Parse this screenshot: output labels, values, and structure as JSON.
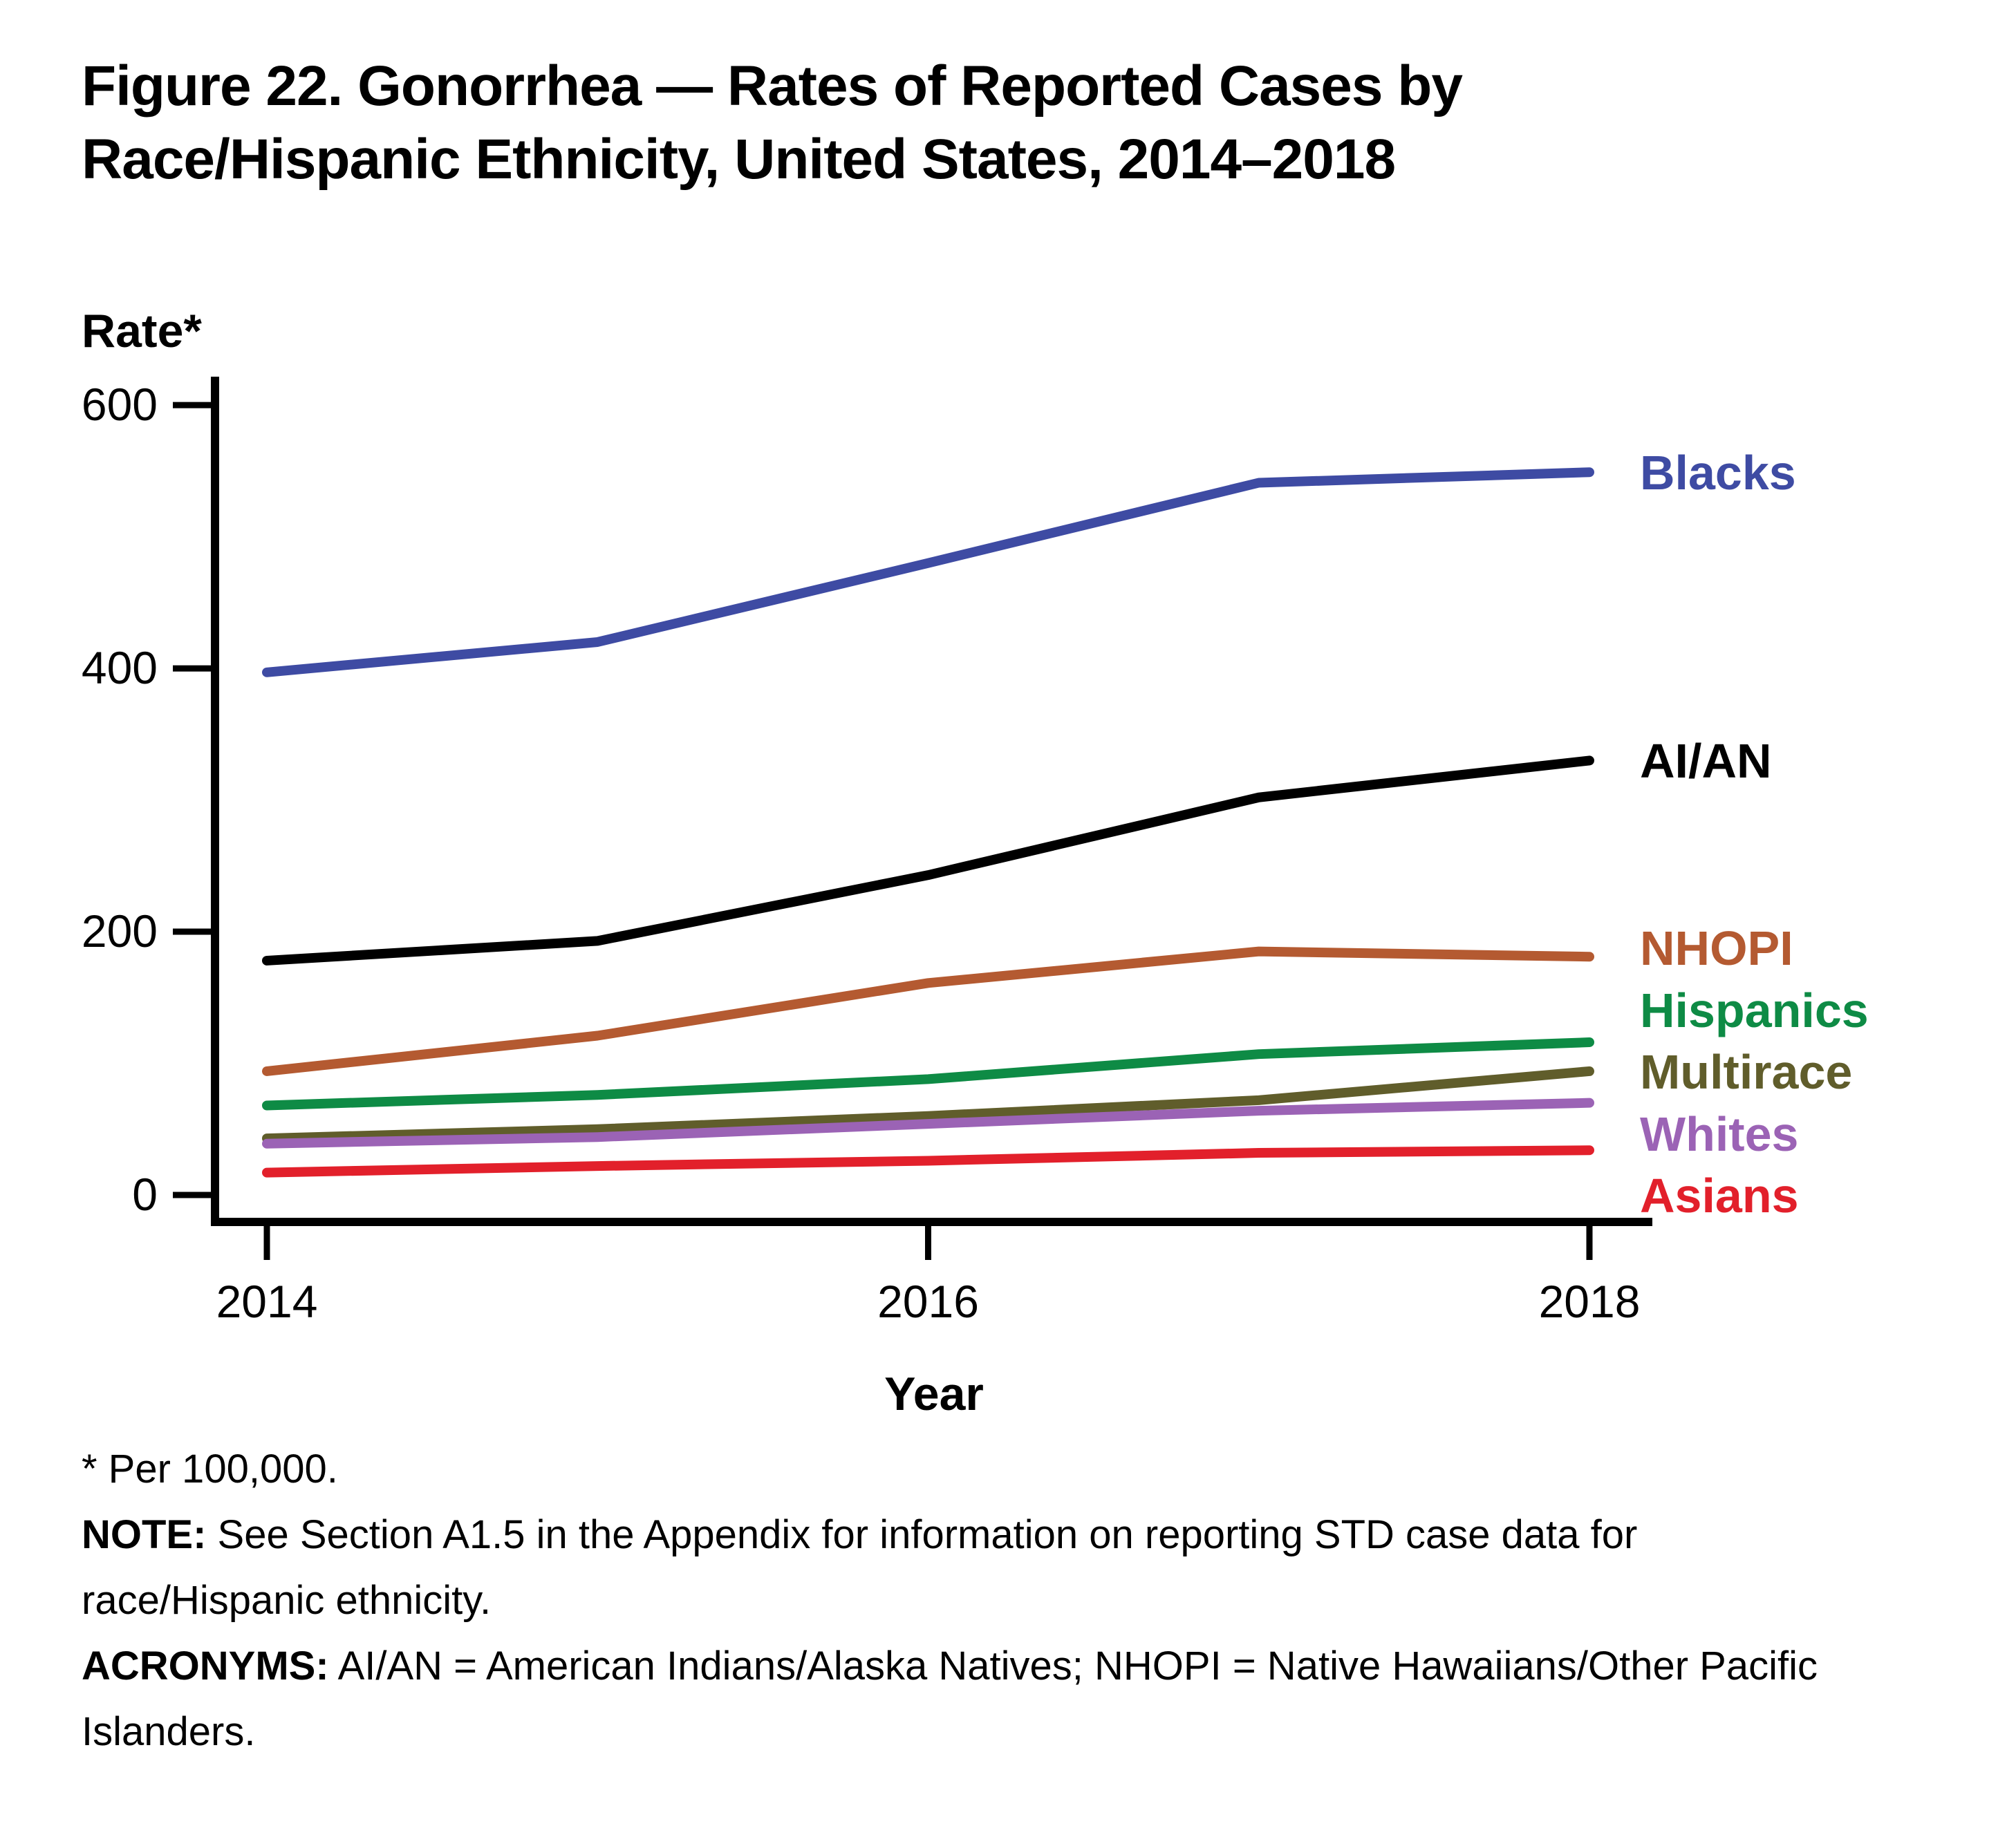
{
  "figure": {
    "title_line1": "Figure 22. Gonorrhea — Rates of Reported Cases by",
    "title_line2": "Race/Hispanic Ethnicity, United States, 2014–2018"
  },
  "chart_data": {
    "type": "line",
    "title": "Figure 22. Gonorrhea — Rates of Reported Cases by Race/Hispanic Ethnicity, United States, 2014–2018",
    "xlabel": "Year",
    "ylabel": "Rate*",
    "x": [
      2014,
      2015,
      2016,
      2017,
      2018
    ],
    "xticks": [
      2014,
      2016,
      2018
    ],
    "yticks": [
      0,
      200,
      400,
      600
    ],
    "ylim": [
      0,
      600
    ],
    "grid": false,
    "legend_position": "right of line ends, colored text labels",
    "axis_color": "#000000",
    "series": [
      {
        "name": "Blacks",
        "color": "#3E4BA3",
        "values": [
          397,
          420,
          480,
          541,
          549
        ]
      },
      {
        "name": "AI/AN",
        "color": "#000000",
        "values": [
          178,
          193,
          243,
          302,
          330
        ]
      },
      {
        "name": "NHOPI",
        "color": "#B45A31",
        "values": [
          94,
          121,
          161,
          185,
          181
        ]
      },
      {
        "name": "Hispanics",
        "color": "#0E8B45",
        "values": [
          68,
          76,
          88,
          107,
          116
        ]
      },
      {
        "name": "Multirace",
        "color": "#605D2B",
        "values": [
          43,
          50,
          60,
          72,
          94
        ]
      },
      {
        "name": "Whites",
        "color": "#9B63B5",
        "values": [
          39,
          44,
          54,
          64,
          70
        ]
      },
      {
        "name": "Asians",
        "color": "#E2202B",
        "values": [
          17,
          22,
          26,
          32,
          34
        ]
      }
    ]
  },
  "footnotes": {
    "per_note": "* Per 100,000.",
    "note_label": "NOTE:",
    "note_text": " See Section A1.5 in the Appendix for information on reporting STD case data for race/Hispanic ethnicity.",
    "acronyms_label": "ACRONYMS:",
    "acronyms_text": " AI/AN = American Indians/Alaska Natives; NHOPI = Native Hawaiians/Other Pacific Islanders."
  }
}
